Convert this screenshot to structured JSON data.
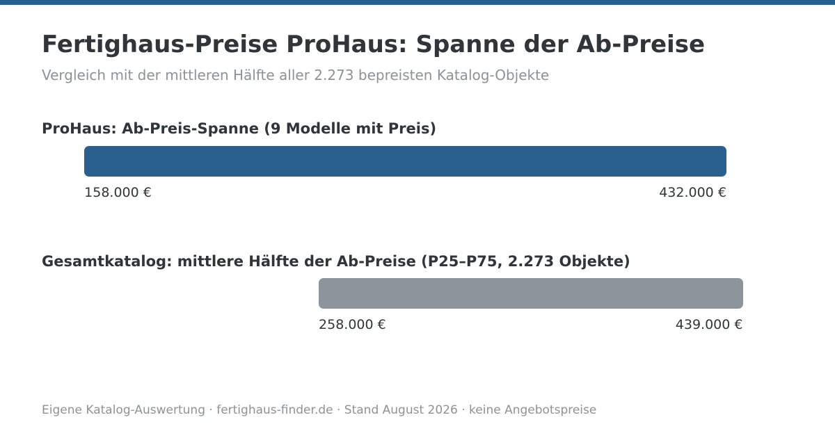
{
  "title": "Fertighaus-Preise ProHaus: Spanne der Ab-Preise",
  "subtitle": "Vergleich mit der mittleren Hälfte aller 2.273 bepreisten Katalog-Objekte",
  "footer": "Eigene Katalog-Auswertung · fertighaus-finder.de · Stand August 2026 · keine Angebotspreise",
  "colors": {
    "accent": "#2a6090",
    "catalog_bar": "#8c959c",
    "text": "#2f3539",
    "muted": "#8a9399"
  },
  "chart_data": {
    "type": "bar",
    "orientation": "horizontal-range",
    "title": "Fertighaus-Preise ProHaus: Spanne der Ab-Preise",
    "subtitle": "Vergleich mit der mittleren Hälfte aller 2.273 bepreisten Katalog-Objekte",
    "unit": "€",
    "xlim": [
      125000,
      445000
    ],
    "grid": false,
    "series": [
      {
        "name": "ProHaus: Ab-Preis-Spanne (9 Modelle mit Preis)",
        "min": 158000,
        "max": 432000,
        "min_label": "158.000 €",
        "max_label": "432.000 €",
        "color": "#2a6090"
      },
      {
        "name": "Gesamtkatalog: mittlere Hälfte der Ab-Preise (P25–P75, 2.273 Objekte)",
        "min": 258000,
        "max": 439000,
        "min_label": "258.000 €",
        "max_label": "439.000 €",
        "color": "#8c959c"
      }
    ]
  }
}
